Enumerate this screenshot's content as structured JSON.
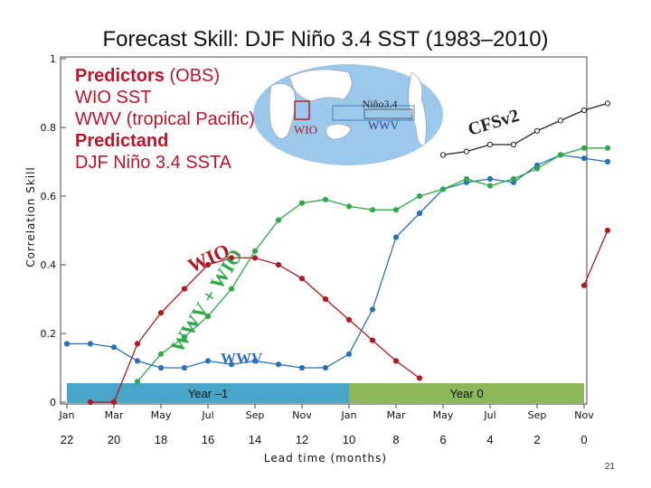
{
  "title": "Forecast Skill: DJF Niño 3.4 SST (1983–2010)",
  "legend": {
    "predictors_bold": "Predictors",
    "predictors_rest": " (OBS)",
    "item1": "WIO SST",
    "item2": "WWV (tropical Pacific)",
    "predictand": "Predictand",
    "item3": "DJF Niño 3.4 SSTA"
  },
  "map": {
    "nino_label": "Niño3.4",
    "wwv_label": "WWV",
    "wio_label": "WIO"
  },
  "year_bars": {
    "year_minus1": "Year –1",
    "year0": "Year 0"
  },
  "slide_number": "21",
  "colors": {
    "wio": "#b01822",
    "wwv": "#2a6fb8",
    "wwv_wio": "#2fa84a",
    "cfsv2": "#222222",
    "bar_year_minus1": "#4aa6c8",
    "bar_year0": "#8db85a",
    "ocean": "#9cc8ec"
  },
  "chart_data": {
    "type": "line",
    "ylabel": "Correlation Skill",
    "xlabel": "Lead time (months)",
    "ylim": [
      0,
      1
    ],
    "yticks": [
      "0",
      "0.2",
      "0.4",
      "0.6",
      "0.8",
      "1"
    ],
    "month_ticks": [
      "Jan",
      "Mar",
      "May",
      "Jul",
      "Sep",
      "Nov",
      "Jan",
      "Mar",
      "May",
      "Jul",
      "Sep",
      "Nov"
    ],
    "lead_ticks": [
      "22",
      "20",
      "18",
      "16",
      "14",
      "12",
      "10",
      "8",
      "6",
      "4",
      "2",
      "0"
    ],
    "series": [
      {
        "name": "WIO",
        "key": "wio",
        "x": [
          1,
          2,
          3,
          4,
          5,
          6,
          7,
          8,
          9,
          10,
          11,
          12,
          13,
          14,
          15
        ],
        "y": [
          0.0,
          0.0,
          0.17,
          0.26,
          0.33,
          0.4,
          0.42,
          0.42,
          0.4,
          0.36,
          0.3,
          0.24,
          0.18,
          0.12,
          0.07
        ]
      },
      {
        "name": "WIO_late",
        "key": "wio",
        "x": [
          22,
          23
        ],
        "y": [
          0.34,
          0.5
        ]
      },
      {
        "name": "WWV",
        "key": "wwv",
        "x": [
          0,
          1,
          2,
          3,
          4,
          5,
          6,
          7,
          8,
          9,
          10,
          11,
          12,
          13,
          14,
          15,
          16,
          17,
          18,
          19,
          20,
          21,
          22,
          23
        ],
        "y": [
          0.17,
          0.17,
          0.16,
          0.12,
          0.1,
          0.1,
          0.12,
          0.11,
          0.12,
          0.11,
          0.1,
          0.1,
          0.14,
          0.27,
          0.48,
          0.55,
          0.62,
          0.64,
          0.65,
          0.64,
          0.69,
          0.72,
          0.71,
          0.7
        ]
      },
      {
        "name": "WWV + WIO",
        "key": "wwv_wio",
        "x": [
          3,
          4,
          5,
          6,
          7,
          8,
          9,
          10,
          11,
          12,
          13,
          14,
          15,
          16,
          17,
          18,
          19,
          20,
          21,
          22,
          23
        ],
        "y": [
          0.06,
          0.14,
          0.19,
          0.25,
          0.33,
          0.44,
          0.53,
          0.58,
          0.59,
          0.57,
          0.56,
          0.56,
          0.6,
          0.62,
          0.65,
          0.63,
          0.65,
          0.68,
          0.72,
          0.74,
          0.74
        ]
      },
      {
        "name": "CFSv2",
        "key": "cfsv2",
        "x": [
          16,
          17,
          18,
          19,
          20,
          21,
          22,
          23
        ],
        "y": [
          0.72,
          0.73,
          0.75,
          0.75,
          0.79,
          0.82,
          0.85,
          0.87
        ]
      }
    ],
    "line_labels": {
      "wio": "WIO",
      "wwv_wio": "WWV + WIO",
      "wwv": "WWV",
      "cfsv2": "CFSv2"
    }
  }
}
